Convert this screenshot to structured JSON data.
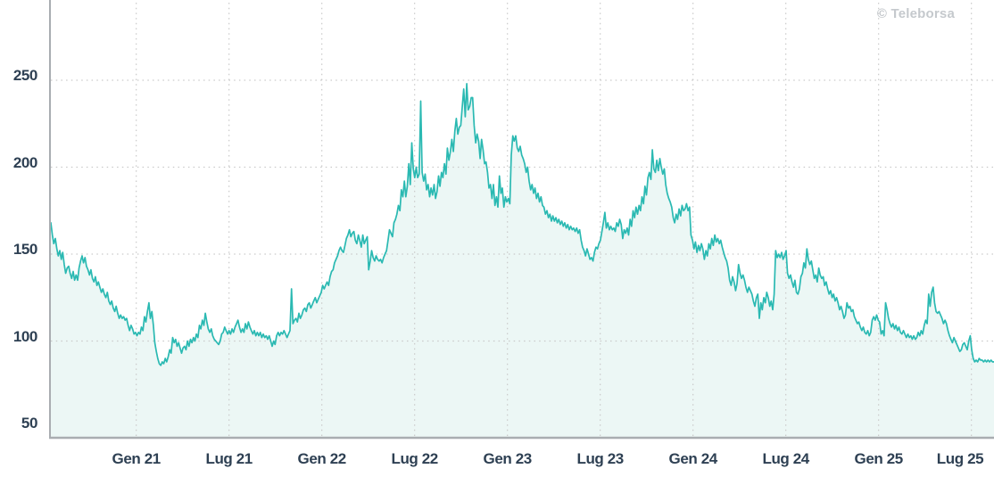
{
  "chart_data": {
    "type": "area",
    "title": "",
    "watermark": "© Teleborsa",
    "legend": "none",
    "grid": "dotted",
    "x_axis": {
      "unit": "decimal_year",
      "start": 2020.54,
      "end": 2025.62,
      "ticks": [
        {
          "t": 2021.0,
          "label": "Gen 21"
        },
        {
          "t": 2021.5,
          "label": "Lug 21"
        },
        {
          "t": 2022.0,
          "label": "Gen 22"
        },
        {
          "t": 2022.5,
          "label": "Lug 22"
        },
        {
          "t": 2023.0,
          "label": "Gen 23"
        },
        {
          "t": 2023.5,
          "label": "Lug 23"
        },
        {
          "t": 2024.0,
          "label": "Gen 24"
        },
        {
          "t": 2024.5,
          "label": "Lug 24"
        },
        {
          "t": 2025.0,
          "label": "Gen 25"
        },
        {
          "t": 2025.5,
          "label": "Lug 25"
        }
      ]
    },
    "y_axis": {
      "ticks": [
        250,
        200,
        150,
        100,
        50
      ],
      "gridline_ticks": [
        250,
        200,
        150,
        100
      ],
      "ylim": [
        44,
        296
      ]
    },
    "colors": {
      "line": "#2ab9b2",
      "fill": "#ecf7f5",
      "grid": "#c9c9c9",
      "axis": "#a9adb1",
      "tick_label": "#2e4053",
      "watermark": "#c5c9cd",
      "background": "#ffffff"
    },
    "series": [
      {
        "name": "price",
        "values": [
          168,
          161,
          156,
          159,
          153,
          149,
          152,
          147,
          151,
          144,
          139,
          142,
          143,
          139,
          136,
          140,
          135,
          138,
          135,
          142,
          146,
          149,
          145,
          148,
          143,
          141,
          138,
          141,
          136,
          134,
          137,
          132,
          134,
          131,
          128,
          130,
          127,
          125,
          128,
          123,
          121,
          123,
          119,
          117,
          120,
          116,
          113,
          115,
          113,
          114,
          112,
          113,
          109,
          106,
          109,
          107,
          104,
          105,
          103,
          105,
          104,
          108,
          106,
          114,
          111,
          117,
          122,
          113,
          117,
          109,
          99,
          94,
          90,
          87,
          86,
          88,
          87,
          90,
          88,
          91,
          95,
          93,
          102,
          99,
          101,
          97,
          99,
          96,
          93,
          96,
          97,
          95,
          100,
          97,
          101,
          99,
          102,
          100,
          104,
          102,
          109,
          107,
          112,
          109,
          116,
          111,
          107,
          105,
          107,
          103,
          101,
          100,
          99,
          98,
          100,
          104,
          105,
          108,
          106,
          104,
          106,
          104,
          107,
          105,
          108,
          110,
          112,
          108,
          105,
          107,
          105,
          110,
          107,
          111,
          108,
          106,
          104,
          106,
          103,
          105,
          103,
          105,
          102,
          104,
          102,
          103,
          101,
          103,
          100,
          97,
          100,
          98,
          103,
          105,
          103,
          105,
          104,
          106,
          104,
          102,
          104,
          106,
          130,
          110,
          112,
          113,
          111,
          116,
          113,
          115,
          118,
          119,
          117,
          121,
          122,
          119,
          121,
          123,
          125,
          122,
          124,
          126,
          128,
          132,
          130,
          132,
          134,
          132,
          137,
          140,
          141,
          145,
          147,
          149,
          152,
          154,
          152,
          151,
          155,
          159,
          161,
          164,
          160,
          162,
          163,
          158,
          156,
          161,
          158,
          154,
          161,
          156,
          158,
          160,
          141,
          146,
          152,
          148,
          146,
          149,
          147,
          146,
          147,
          145,
          148,
          150,
          152,
          158,
          164,
          162,
          160,
          168,
          170,
          173,
          178,
          175,
          187,
          183,
          192,
          183,
          189,
          202,
          190,
          214,
          199,
          194,
          200,
          194,
          196,
          238,
          197,
          192,
          196,
          187,
          190,
          183,
          188,
          184,
          190,
          182,
          186,
          195,
          189,
          197,
          194,
          202,
          196,
          211,
          204,
          209,
          216,
          209,
          221,
          228,
          219,
          223,
          224,
          235,
          245,
          229,
          248,
          233,
          235,
          240,
          240,
          224,
          214,
          219,
          215,
          205,
          216,
          210,
          202,
          203,
          197,
          188,
          190,
          182,
          190,
          178,
          183,
          177,
          195,
          185,
          188,
          177,
          183,
          180,
          182,
          179,
          207,
          218,
          215,
          218,
          211,
          209,
          212,
          207,
          205,
          202,
          197,
          200,
          192,
          187,
          190,
          185,
          188,
          182,
          185,
          180,
          183,
          178,
          177,
          173,
          175,
          171,
          173,
          169,
          172,
          169,
          171,
          168,
          170,
          167,
          169,
          166,
          168,
          165,
          167,
          164,
          166,
          164,
          165,
          163,
          165,
          162,
          164,
          158,
          154,
          152,
          149,
          153,
          150,
          147,
          148,
          146,
          151,
          154,
          153,
          156,
          158,
          163,
          168,
          174,
          165,
          168,
          164,
          166,
          164,
          165,
          163,
          168,
          166,
          170,
          167,
          159,
          164,
          162,
          165,
          161,
          170,
          166,
          175,
          171,
          177,
          173,
          178,
          175,
          183,
          179,
          189,
          184,
          194,
          197,
          193,
          210,
          199,
          197,
          204,
          198,
          205,
          200,
          196,
          199,
          190,
          185,
          182,
          180,
          177,
          171,
          168,
          173,
          170,
          176,
          172,
          178,
          175,
          176,
          179,
          175,
          177,
          161,
          158,
          153,
          157,
          151,
          155,
          152,
          156,
          153,
          147,
          152,
          149,
          156,
          153,
          159,
          155,
          161,
          157,
          159,
          156,
          158,
          154,
          151,
          148,
          146,
          142,
          135,
          132,
          137,
          134,
          129,
          133,
          144,
          139,
          136,
          138,
          135,
          131,
          128,
          131,
          129,
          127,
          123,
          120,
          125,
          127,
          113,
          122,
          118,
          125,
          122,
          128,
          125,
          120,
          123,
          118,
          127,
          152,
          148,
          150,
          148,
          151,
          147,
          149,
          152,
          139,
          136,
          138,
          134,
          131,
          135,
          128,
          127,
          130,
          137,
          139,
          145,
          142,
          153,
          147,
          144,
          146,
          141,
          136,
          138,
          134,
          142,
          138,
          136,
          137,
          132,
          134,
          130,
          127,
          129,
          125,
          127,
          123,
          125,
          122,
          118,
          120,
          117,
          113,
          115,
          122,
          119,
          120,
          117,
          118,
          114,
          112,
          110,
          111,
          108,
          106,
          108,
          105,
          104,
          106,
          103,
          105,
          112,
          114,
          112,
          115,
          112,
          111,
          104,
          106,
          103,
          122,
          118,
          113,
          110,
          108,
          110,
          107,
          109,
          106,
          108,
          105,
          104,
          106,
          104,
          102,
          104,
          102,
          103,
          101,
          103,
          101,
          102,
          105,
          103,
          106,
          104,
          109,
          112,
          110,
          127,
          120,
          128,
          131,
          122,
          117,
          116,
          117,
          115,
          113,
          110,
          112,
          110,
          106,
          103,
          101,
          99,
          102,
          100,
          98,
          96,
          94,
          95,
          98,
          99,
          97,
          95,
          100,
          103,
          95,
          90,
          88,
          89,
          88,
          90,
          89,
          89,
          88,
          89,
          88,
          89,
          88,
          89,
          88,
          88
        ]
      }
    ]
  }
}
